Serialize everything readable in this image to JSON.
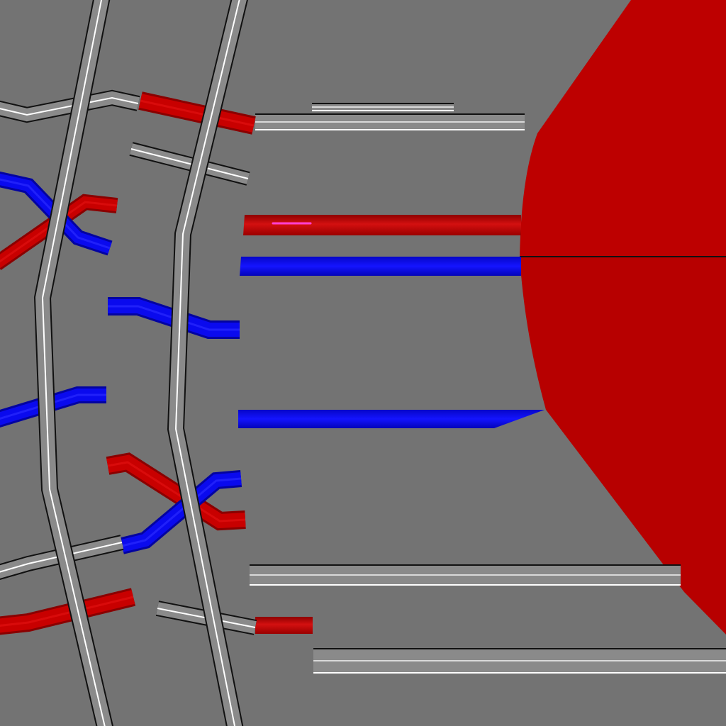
{
  "scene": {
    "colors": {
      "background": "#737373",
      "red_wire": "#c80000",
      "red_wire_highlight": "#e01010",
      "blue_wire": "#0a0aee",
      "grey_rail": "#8a8a8a",
      "rail_edge_light": "#ffffff",
      "rail_edge_dark": "#111111",
      "red_body": "#bd0000",
      "red_body_shade": "#b40000",
      "magenta_glint": "#ff40d0"
    },
    "icons": [
      "connector-hub-icon"
    ],
    "wires": [
      {
        "name": "red-wire-top-left",
        "color": "red"
      },
      {
        "name": "red-wire-top-connector",
        "color": "red"
      },
      {
        "name": "red-wire-crossing-upper",
        "color": "red"
      },
      {
        "name": "blue-wire-crossing-upper",
        "color": "blue"
      },
      {
        "name": "red-wire-feed-upper",
        "color": "red"
      },
      {
        "name": "blue-wire-feed-upper",
        "color": "blue"
      },
      {
        "name": "blue-wire-mid-bend",
        "color": "blue"
      },
      {
        "name": "blue-wire-left-mid",
        "color": "blue"
      },
      {
        "name": "blue-wire-feed-lower",
        "color": "blue"
      },
      {
        "name": "red-wire-crossing-lower",
        "color": "red"
      },
      {
        "name": "blue-wire-crossing-lower",
        "color": "blue"
      },
      {
        "name": "red-wire-bottom-left",
        "color": "red"
      },
      {
        "name": "red-wire-bottom-connector",
        "color": "red"
      }
    ]
  }
}
